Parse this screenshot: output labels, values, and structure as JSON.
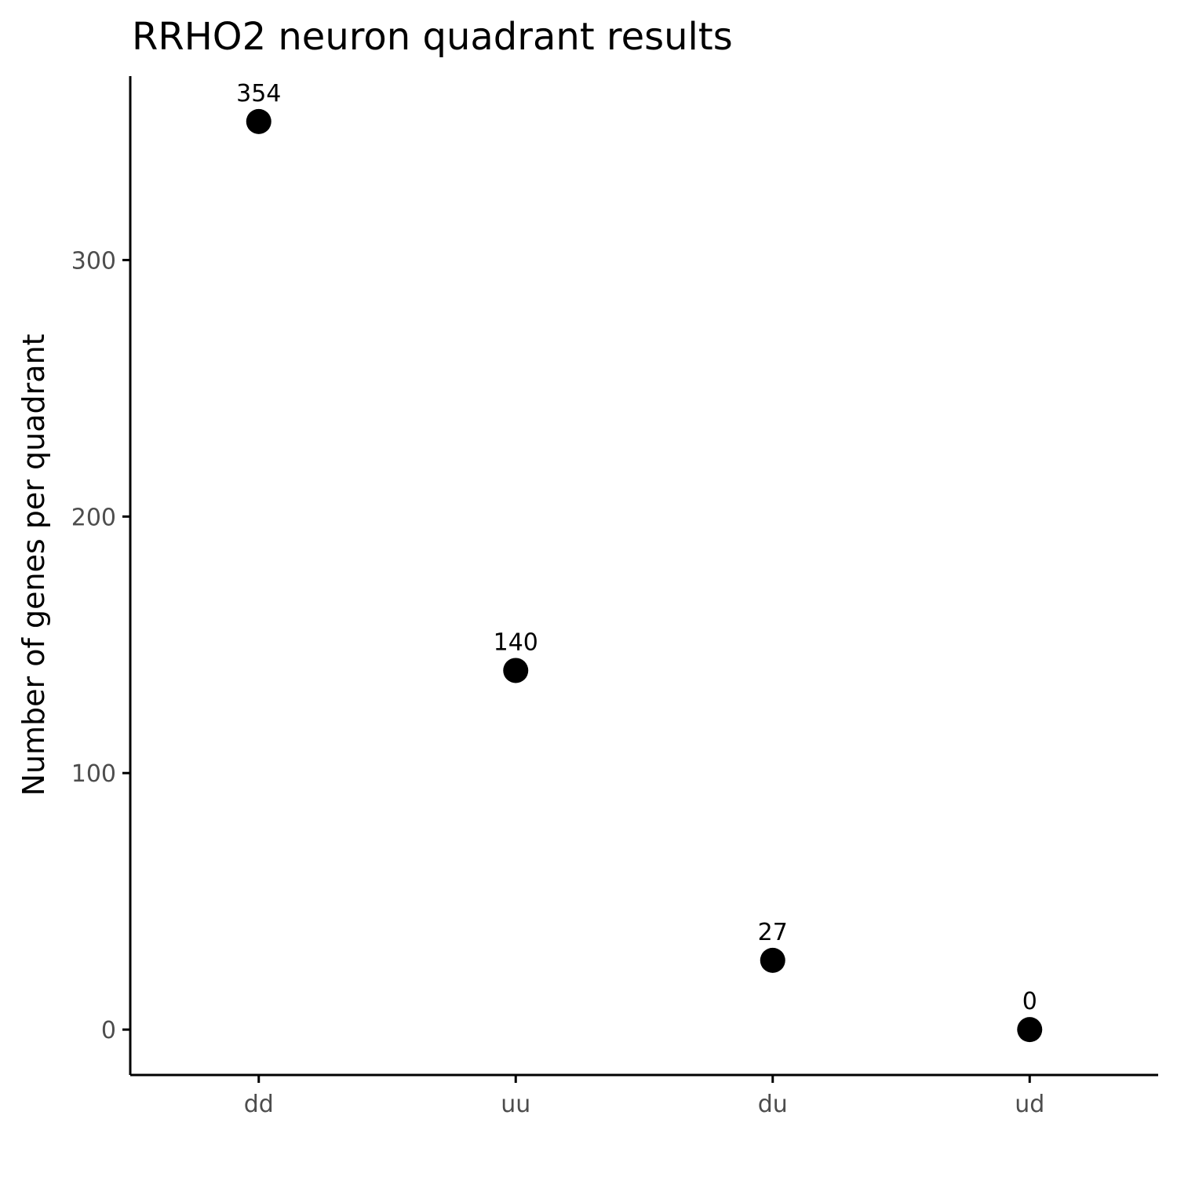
{
  "chart_data": {
    "type": "scatter",
    "title": "RRHO2 neuron quadrant results",
    "xlabel": "",
    "ylabel": "Number of genes per quadrant",
    "categories": [
      "dd",
      "uu",
      "du",
      "ud"
    ],
    "values": [
      354,
      140,
      27,
      0
    ],
    "data_labels": [
      "354",
      "140",
      "27",
      "0"
    ],
    "y_ticks": [
      0,
      100,
      200,
      300
    ],
    "y_tick_labels": [
      "0",
      "100",
      "200",
      "300"
    ],
    "ylim": [
      -17.7,
      371.7
    ],
    "grid": false,
    "legend": "none",
    "point_color": "#000000",
    "tick_label_color": "#4d4d4d"
  }
}
